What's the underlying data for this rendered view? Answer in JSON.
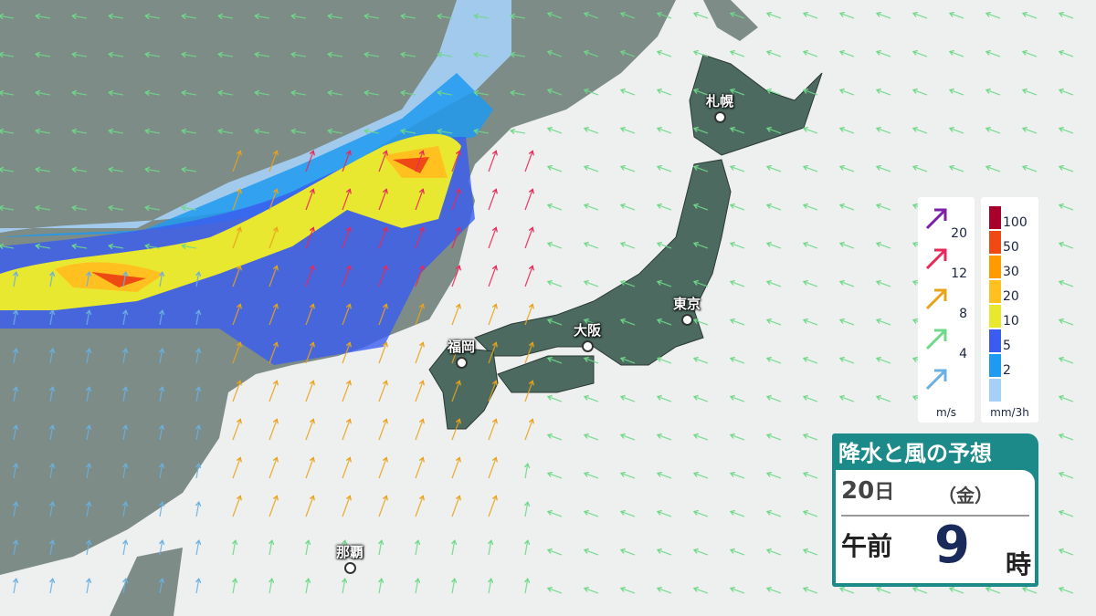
{
  "title": "降水と風の予想",
  "forecast": {
    "date": "20",
    "date_suffix": "日",
    "weekday": "（金）",
    "ampm": "午前",
    "hour": "9",
    "hour_suffix": "時"
  },
  "cities": [
    {
      "name": "札幌"
    },
    {
      "name": "東京"
    },
    {
      "name": "大阪"
    },
    {
      "name": "福岡"
    },
    {
      "name": "那覇"
    }
  ],
  "wind_legend": {
    "unit": "m/s",
    "levels": [
      {
        "value": "20",
        "color": "#7a1fa8"
      },
      {
        "value": "12",
        "color": "#e8285a"
      },
      {
        "value": "8",
        "color": "#e8a31a"
      },
      {
        "value": "4",
        "color": "#6fd88a"
      },
      {
        "value": "",
        "color": "#6ab0e0"
      }
    ]
  },
  "rain_legend": {
    "unit": "mm/3h",
    "levels": [
      {
        "value": "100",
        "color": "#a8002a"
      },
      {
        "value": "50",
        "color": "#f04a14"
      },
      {
        "value": "30",
        "color": "#ff9a00"
      },
      {
        "value": "20",
        "color": "#ffc020"
      },
      {
        "value": "10",
        "color": "#e8e830"
      },
      {
        "value": "5",
        "color": "#3a5cf0"
      },
      {
        "value": "2",
        "color": "#1e9af0"
      },
      {
        "value": "",
        "color": "#a6d0f8"
      }
    ]
  },
  "colors": {
    "sea": "#eef0f0",
    "continent": "#7d8c86",
    "japan": "#4c6a60",
    "panel": "#1d8a8a"
  }
}
